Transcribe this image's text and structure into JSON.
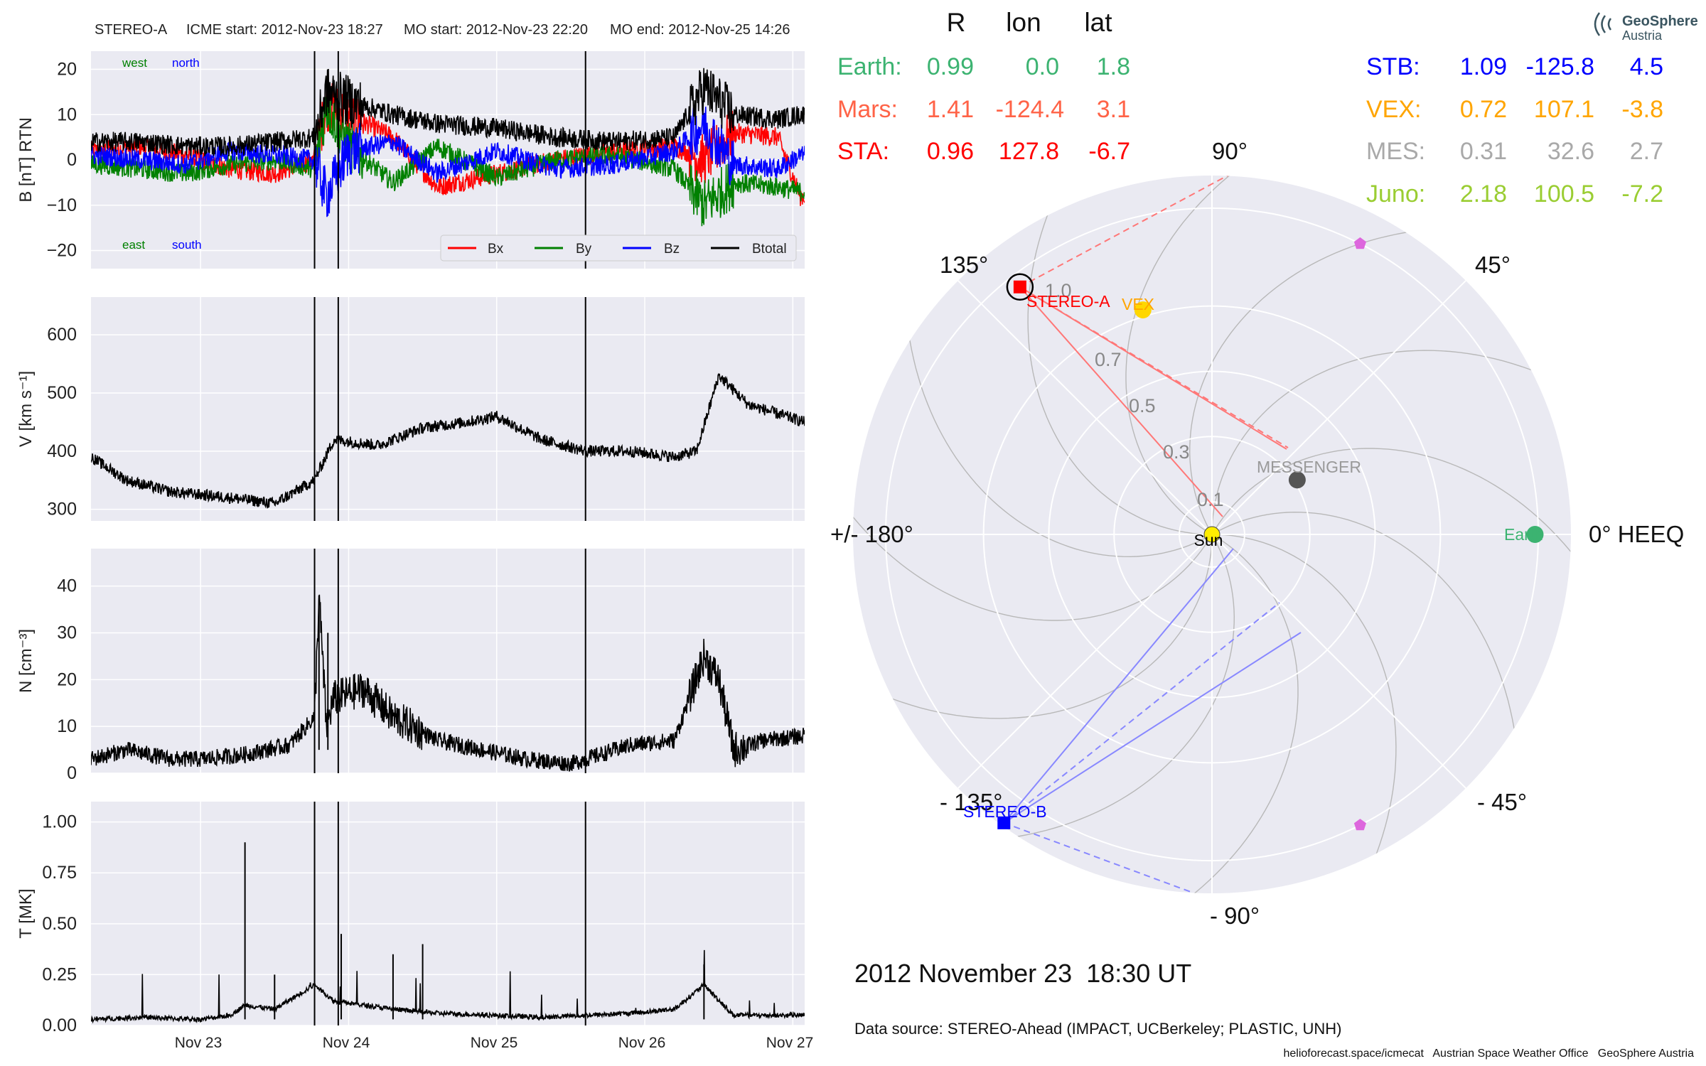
{
  "header": {
    "spacecraft": "STEREO-A",
    "icme_start": "ICME start: 2012-Nov-23 18:27",
    "mo_start": "MO start: 2012-Nov-23 22:20",
    "mo_end": "MO end: 2012-Nov-25 14:26"
  },
  "colors": {
    "bx": "#ff0000",
    "by": "#008000",
    "bz": "#0000ff",
    "btotal": "#000000",
    "panel_bg": "#eaeaf2",
    "grid": "#ffffff"
  },
  "time_axis": {
    "ticks": [
      "Nov 23",
      "Nov 24",
      "Nov 25",
      "Nov 26",
      "Nov 27"
    ],
    "tick_days": [
      23,
      24,
      25,
      26,
      27
    ],
    "range_days": [
      22.26,
      27.08
    ],
    "event_lines_days": [
      23.77,
      23.93,
      25.6
    ]
  },
  "panels": {
    "b": {
      "ylabel": "B [nT] RTN",
      "yticks": [
        20,
        10,
        0,
        -10,
        -20
      ],
      "ytick_labels": [
        "20",
        "10",
        "0",
        "−10",
        "−20"
      ],
      "ylim": [
        -24,
        24
      ],
      "labels": {
        "west": "west",
        "north": "north",
        "east": "east",
        "south": "south"
      },
      "legend": [
        "Bx",
        "By",
        "Bz",
        "Btotal"
      ]
    },
    "v": {
      "ylabel": "V [km s⁻¹]",
      "yticks": [
        600,
        500,
        400,
        300
      ],
      "ytick_labels": [
        "600",
        "500",
        "400",
        "300"
      ],
      "ylim": [
        280,
        665
      ]
    },
    "n": {
      "ylabel": "N [cm⁻³]",
      "yticks": [
        40,
        30,
        20,
        10,
        0
      ],
      "ytick_labels": [
        "40",
        "30",
        "20",
        "10",
        "0"
      ],
      "ylim": [
        0,
        48
      ]
    },
    "t": {
      "ylabel": "T [MK]",
      "yticks": [
        1.0,
        0.75,
        0.5,
        0.25,
        0.0
      ],
      "ytick_labels": [
        "1.00",
        "0.75",
        "0.50",
        "0.25",
        "0.00"
      ],
      "ylim": [
        0,
        1.1
      ]
    }
  },
  "chart_data": [
    {
      "type": "line",
      "panel": "b",
      "x_unit": "day of November 2012",
      "series": [
        {
          "name": "Bx",
          "x": [
            22.3,
            22.6,
            22.9,
            23.2,
            23.5,
            23.77,
            23.85,
            24.0,
            24.3,
            24.6,
            25.0,
            25.4,
            25.8,
            26.2,
            26.4,
            26.6,
            26.9,
            27.05
          ],
          "y": [
            2,
            3,
            1,
            -2,
            -3,
            0,
            12,
            10,
            5,
            -6,
            -3,
            0,
            2,
            3,
            0,
            6,
            5,
            -8
          ]
        },
        {
          "name": "By",
          "x": [
            22.3,
            22.6,
            22.9,
            23.2,
            23.5,
            23.77,
            23.85,
            24.0,
            24.3,
            24.6,
            25.0,
            25.4,
            25.8,
            26.2,
            26.4,
            26.6,
            26.9,
            27.05
          ],
          "y": [
            -1,
            -2,
            -3,
            -1,
            0,
            -2,
            12,
            3,
            -5,
            3,
            -4,
            0,
            1,
            -2,
            -10,
            -5,
            -6,
            -7
          ]
        },
        {
          "name": "Bz",
          "x": [
            22.3,
            22.6,
            22.9,
            23.2,
            23.5,
            23.77,
            23.85,
            24.0,
            24.3,
            24.6,
            25.0,
            25.4,
            25.8,
            26.2,
            26.4,
            26.6,
            26.9,
            27.05
          ],
          "y": [
            1,
            0,
            -1,
            2,
            1,
            0,
            -8,
            2,
            4,
            -3,
            2,
            -2,
            -1,
            2,
            8,
            -1,
            -2,
            1
          ]
        },
        {
          "name": "Btotal",
          "x": [
            22.3,
            22.6,
            22.9,
            23.2,
            23.5,
            23.77,
            23.85,
            24.0,
            24.3,
            24.6,
            25.0,
            25.4,
            25.8,
            26.2,
            26.4,
            26.6,
            26.9,
            27.05
          ],
          "y": [
            4,
            4,
            3,
            3,
            4,
            5,
            15,
            13,
            10,
            8,
            7,
            5,
            4,
            5,
            16,
            10,
            9,
            10
          ]
        }
      ]
    },
    {
      "type": "line",
      "panel": "v",
      "x_unit": "day of November 2012",
      "series": [
        {
          "x": [
            22.26,
            22.5,
            22.8,
            23.2,
            23.5,
            23.77,
            23.9,
            24.2,
            24.5,
            24.8,
            25.0,
            25.3,
            25.6,
            25.9,
            26.2,
            26.35,
            26.5,
            26.7,
            27.08
          ],
          "y": [
            390,
            350,
            330,
            320,
            310,
            350,
            420,
            410,
            440,
            450,
            460,
            420,
            400,
            400,
            390,
            400,
            530,
            480,
            450
          ]
        }
      ]
    },
    {
      "type": "line",
      "panel": "n",
      "x_unit": "day of November 2012",
      "series": [
        {
          "x": [
            22.26,
            22.5,
            22.8,
            23.0,
            23.3,
            23.6,
            23.77,
            23.8,
            23.85,
            23.9,
            24.1,
            24.3,
            24.6,
            24.9,
            25.2,
            25.5,
            25.6,
            25.9,
            26.2,
            26.4,
            26.5,
            26.6,
            26.8,
            27.08
          ],
          "y": [
            3,
            5,
            3,
            3,
            4,
            6,
            12,
            38,
            10,
            16,
            18,
            12,
            7,
            5,
            3,
            2,
            3,
            6,
            7,
            25,
            20,
            5,
            7,
            8
          ]
        }
      ]
    },
    {
      "type": "line",
      "panel": "t",
      "x_unit": "day of November 2012",
      "series": [
        {
          "x": [
            22.26,
            22.6,
            23.0,
            23.2,
            23.3,
            23.5,
            23.77,
            23.9,
            24.3,
            24.6,
            25.0,
            25.3,
            25.6,
            25.9,
            26.2,
            26.4,
            26.6,
            27.08
          ],
          "y": [
            0.03,
            0.04,
            0.03,
            0.05,
            0.1,
            0.08,
            0.2,
            0.12,
            0.08,
            0.06,
            0.05,
            0.04,
            0.05,
            0.06,
            0.08,
            0.2,
            0.05,
            0.05
          ]
        }
      ]
    },
    {
      "type": "scatter",
      "panel": "polar",
      "r_max": 1.1,
      "points": [
        {
          "name": "Sun",
          "r": 0.0,
          "lon": 0.0,
          "color": "#ffee00"
        },
        {
          "name": "Earth",
          "r": 0.99,
          "lon": 0.0,
          "color": "#3cb371"
        },
        {
          "name": "STEREO-A",
          "r": 0.96,
          "lon": 127.8,
          "color": "#ff0000"
        },
        {
          "name": "STEREO-B",
          "r": 1.09,
          "lon": -125.8,
          "color": "#0000ff"
        },
        {
          "name": "VEX",
          "r": 0.72,
          "lon": 107.1,
          "color": "#ffd700"
        },
        {
          "name": "MESSENGER",
          "r": 0.31,
          "lon": 32.6,
          "color": "#555555"
        },
        {
          "name": "",
          "r": 1.0,
          "lon": 63.0,
          "color": "#dd66dd"
        },
        {
          "name": "",
          "r": 1.0,
          "lon": -63.0,
          "color": "#dd66dd"
        }
      ]
    }
  ],
  "polar": {
    "angle_labels": {
      "a90": "90°",
      "a45": "45°",
      "a0": "0° HEEQ",
      "am45": "- 45°",
      "am90": "- 90°",
      "am135": "- 135°",
      "a180": "+/- 180°",
      "a135": "135°"
    },
    "radial_labels": [
      "0.1",
      "0.3",
      "0.5",
      "0.7",
      "1.0"
    ],
    "radial_values": [
      0.1,
      0.3,
      0.5,
      0.7,
      1.0
    ],
    "labels": {
      "sun": "Sun",
      "earth": "Earth",
      "sta": "STEREO-A",
      "stb": "STEREO-B",
      "vex": "VEX",
      "mes": "MESSENGER"
    }
  },
  "position_table": {
    "headers": [
      "R",
      "lon",
      "lat"
    ],
    "left_rows": [
      {
        "name": "Earth:",
        "r": "0.99",
        "lon": "0.0",
        "lat": "1.8",
        "color": "#3cb371"
      },
      {
        "name": "Mars:",
        "r": "1.41",
        "lon": "-124.4",
        "lat": "3.1",
        "color": "#ff6347"
      },
      {
        "name": "STA:",
        "r": "0.96",
        "lon": "127.8",
        "lat": "-6.7",
        "color": "#ff0000"
      }
    ],
    "right_rows": [
      {
        "name": "STB:",
        "r": "1.09",
        "lon": "-125.8",
        "lat": "4.5",
        "color": "#0000ff"
      },
      {
        "name": "VEX:",
        "r": "0.72",
        "lon": "107.1",
        "lat": "-3.8",
        "color": "#ffa500"
      },
      {
        "name": "MES:",
        "r": "0.31",
        "lon": "32.6",
        "lat": "2.7",
        "color": "#a9a9a9"
      },
      {
        "name": "Juno:",
        "r": "2.18",
        "lon": "100.5",
        "lat": "-7.2",
        "color": "#9acd32"
      }
    ]
  },
  "date_label": "2012 November 23  18:30 UT",
  "data_source": "Data source: STEREO-Ahead (IMPACT, UCBerkeley; PLASTIC, UNH)",
  "footer": "helioforecast.space/icmecat   Austrian Space Weather Office   GeoSphere Austria",
  "logo": {
    "line1": "GeoSphere",
    "line2": "Austria"
  }
}
